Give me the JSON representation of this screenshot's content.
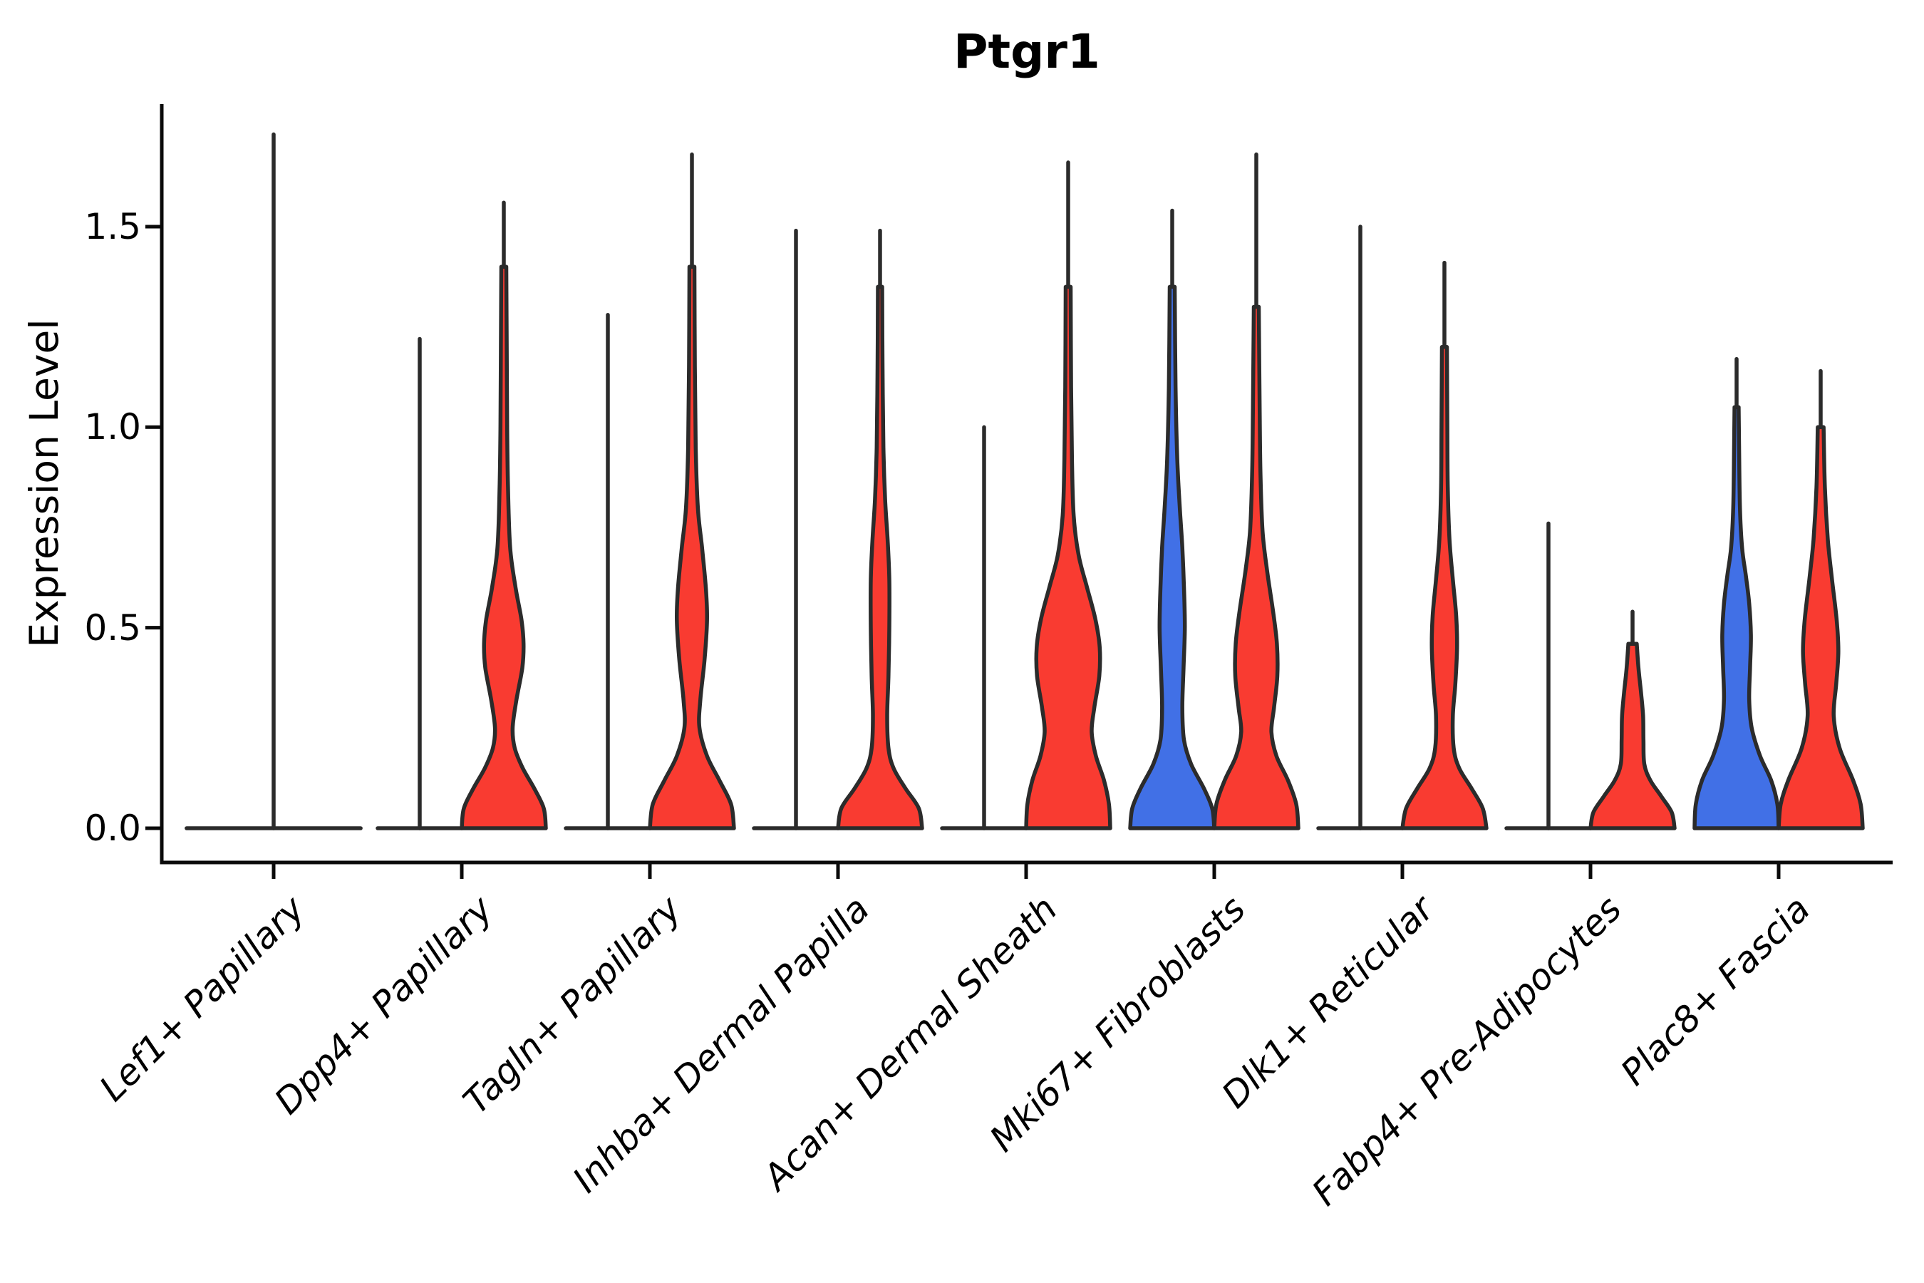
{
  "title": "Ptgr1",
  "y_axis_label": "Expression Level",
  "colors": {
    "red": "#F93B31",
    "blue": "#4170E6",
    "edge": "#2B2B2B",
    "axis": "#0a0a0a",
    "text": "#000000"
  },
  "chart_data": {
    "type": "violin",
    "title": "Ptgr1",
    "xlabel": "",
    "ylabel": "Expression Level",
    "ylim": [
      -0.085,
      1.81
    ],
    "yticks": [
      "0.0",
      "0.5",
      "1.0",
      "1.5"
    ],
    "ytick_values": [
      0.0,
      0.5,
      1.0,
      1.5
    ],
    "grid": false,
    "legend": "none",
    "categories": [
      "Lef1+ Papillary",
      "Dpp4+ Papillary",
      "Tagln+ Papillary",
      "Inhba+ Dermal Papilla",
      "Acan+ Dermal Sheath",
      "Mki67+ Fibroblasts",
      "Dlk1+ Reticular",
      "Fabp4+ Pre-Adipocytes",
      "Plac8+ Fascia"
    ],
    "note": "Split violins per category: left/right. color 'none' = distribution collapsed at 0 (flat line) with a thin whisker spike to spike_max. profile = [expression, half-width fraction of 1.0 unit] pairs.",
    "groups": [
      {
        "label": "Lef1+ Papillary",
        "violins": [
          {
            "pos": "center",
            "color": "none",
            "flat_halfwidth": 2.07,
            "spike_max": 1.73,
            "profile": null
          }
        ]
      },
      {
        "label": "Dpp4+ Papillary",
        "violins": [
          {
            "pos": "left",
            "color": "none",
            "flat_halfwidth": 1.0,
            "spike_max": 1.22,
            "profile": null
          },
          {
            "pos": "right",
            "color": "red",
            "spike_max": 1.56,
            "profile": [
              [
                0,
                1.0
              ],
              [
                0.05,
                0.95
              ],
              [
                0.1,
                0.72
              ],
              [
                0.15,
                0.45
              ],
              [
                0.2,
                0.26
              ],
              [
                0.25,
                0.21
              ],
              [
                0.32,
                0.3
              ],
              [
                0.4,
                0.44
              ],
              [
                0.46,
                0.47
              ],
              [
                0.52,
                0.42
              ],
              [
                0.6,
                0.28
              ],
              [
                0.7,
                0.15
              ],
              [
                0.85,
                0.1
              ],
              [
                1.0,
                0.08
              ],
              [
                1.2,
                0.07
              ],
              [
                1.4,
                0.06
              ]
            ]
          }
        ]
      },
      {
        "label": "Tagln+ Papillary",
        "violins": [
          {
            "pos": "left",
            "color": "none",
            "flat_halfwidth": 1.0,
            "spike_max": 1.28,
            "profile": null
          },
          {
            "pos": "right",
            "color": "red",
            "spike_max": 1.68,
            "profile": [
              [
                0,
                1.0
              ],
              [
                0.06,
                0.93
              ],
              [
                0.12,
                0.65
              ],
              [
                0.18,
                0.36
              ],
              [
                0.25,
                0.18
              ],
              [
                0.32,
                0.2
              ],
              [
                0.42,
                0.3
              ],
              [
                0.52,
                0.36
              ],
              [
                0.6,
                0.33
              ],
              [
                0.7,
                0.24
              ],
              [
                0.8,
                0.14
              ],
              [
                0.95,
                0.09
              ],
              [
                1.15,
                0.07
              ],
              [
                1.4,
                0.06
              ]
            ]
          }
        ]
      },
      {
        "label": "Inhba+ Dermal Papilla",
        "violins": [
          {
            "pos": "left",
            "color": "none",
            "flat_halfwidth": 1.0,
            "spike_max": 1.49,
            "profile": null
          },
          {
            "pos": "right",
            "color": "red",
            "spike_max": 1.49,
            "profile": [
              [
                0,
                1.0
              ],
              [
                0.05,
                0.92
              ],
              [
                0.1,
                0.6
              ],
              [
                0.15,
                0.32
              ],
              [
                0.2,
                0.2
              ],
              [
                0.28,
                0.17
              ],
              [
                0.38,
                0.2
              ],
              [
                0.5,
                0.22
              ],
              [
                0.62,
                0.22
              ],
              [
                0.72,
                0.18
              ],
              [
                0.82,
                0.12
              ],
              [
                0.95,
                0.08
              ],
              [
                1.15,
                0.06
              ],
              [
                1.35,
                0.05
              ]
            ]
          }
        ]
      },
      {
        "label": "Acan+ Dermal Sheath",
        "violins": [
          {
            "pos": "left",
            "color": "none",
            "flat_halfwidth": 1.0,
            "spike_max": 1.0,
            "profile": null
          },
          {
            "pos": "right",
            "color": "red",
            "spike_max": 1.66,
            "profile": [
              [
                0,
                1.0
              ],
              [
                0.06,
                0.97
              ],
              [
                0.12,
                0.85
              ],
              [
                0.18,
                0.66
              ],
              [
                0.24,
                0.56
              ],
              [
                0.3,
                0.62
              ],
              [
                0.38,
                0.74
              ],
              [
                0.45,
                0.75
              ],
              [
                0.52,
                0.65
              ],
              [
                0.6,
                0.45
              ],
              [
                0.68,
                0.25
              ],
              [
                0.78,
                0.13
              ],
              [
                0.92,
                0.09
              ],
              [
                1.1,
                0.07
              ],
              [
                1.35,
                0.06
              ]
            ]
          }
        ]
      },
      {
        "label": "Mki67+ Fibroblasts",
        "violins": [
          {
            "pos": "left",
            "color": "blue",
            "spike_max": 1.54,
            "profile": [
              [
                0,
                1.0
              ],
              [
                0.05,
                0.95
              ],
              [
                0.1,
                0.75
              ],
              [
                0.16,
                0.45
              ],
              [
                0.22,
                0.28
              ],
              [
                0.3,
                0.24
              ],
              [
                0.4,
                0.27
              ],
              [
                0.5,
                0.3
              ],
              [
                0.6,
                0.28
              ],
              [
                0.7,
                0.24
              ],
              [
                0.8,
                0.18
              ],
              [
                0.92,
                0.12
              ],
              [
                1.1,
                0.08
              ],
              [
                1.35,
                0.06
              ]
            ]
          },
          {
            "pos": "right",
            "color": "red",
            "spike_max": 1.68,
            "profile": [
              [
                0,
                1.0
              ],
              [
                0.06,
                0.95
              ],
              [
                0.12,
                0.75
              ],
              [
                0.18,
                0.48
              ],
              [
                0.24,
                0.36
              ],
              [
                0.3,
                0.42
              ],
              [
                0.38,
                0.5
              ],
              [
                0.46,
                0.49
              ],
              [
                0.54,
                0.4
              ],
              [
                0.64,
                0.26
              ],
              [
                0.74,
                0.15
              ],
              [
                0.88,
                0.1
              ],
              [
                1.05,
                0.08
              ],
              [
                1.3,
                0.06
              ]
            ]
          }
        ]
      },
      {
        "label": "Dlk1+ Reticular",
        "violins": [
          {
            "pos": "left",
            "color": "none",
            "flat_halfwidth": 1.0,
            "spike_max": 1.5,
            "profile": null
          },
          {
            "pos": "right",
            "color": "red",
            "spike_max": 1.41,
            "profile": [
              [
                0,
                1.0
              ],
              [
                0.05,
                0.91
              ],
              [
                0.1,
                0.64
              ],
              [
                0.15,
                0.35
              ],
              [
                0.2,
                0.22
              ],
              [
                0.28,
                0.2
              ],
              [
                0.36,
                0.26
              ],
              [
                0.45,
                0.3
              ],
              [
                0.53,
                0.28
              ],
              [
                0.62,
                0.2
              ],
              [
                0.72,
                0.12
              ],
              [
                0.85,
                0.08
              ],
              [
                1.0,
                0.07
              ],
              [
                1.2,
                0.06
              ]
            ]
          }
        ]
      },
      {
        "label": "Fabp4+ Pre-Adipocytes",
        "violins": [
          {
            "pos": "left",
            "color": "none",
            "flat_halfwidth": 1.0,
            "spike_max": 0.76,
            "profile": null
          },
          {
            "pos": "right",
            "color": "red",
            "spike_max": 0.54,
            "profile": [
              [
                0,
                1.0
              ],
              [
                0.04,
                0.93
              ],
              [
                0.08,
                0.68
              ],
              [
                0.12,
                0.42
              ],
              [
                0.16,
                0.28
              ],
              [
                0.22,
                0.26
              ],
              [
                0.28,
                0.25
              ],
              [
                0.34,
                0.2
              ],
              [
                0.4,
                0.14
              ],
              [
                0.46,
                0.1
              ]
            ]
          }
        ]
      },
      {
        "label": "Plac8+ Fascia",
        "violins": [
          {
            "pos": "left",
            "color": "blue",
            "spike_max": 1.17,
            "profile": [
              [
                0,
                1.0
              ],
              [
                0.06,
                0.97
              ],
              [
                0.12,
                0.82
              ],
              [
                0.18,
                0.56
              ],
              [
                0.25,
                0.36
              ],
              [
                0.32,
                0.3
              ],
              [
                0.4,
                0.32
              ],
              [
                0.48,
                0.34
              ],
              [
                0.56,
                0.3
              ],
              [
                0.63,
                0.22
              ],
              [
                0.7,
                0.13
              ],
              [
                0.8,
                0.08
              ],
              [
                0.95,
                0.06
              ],
              [
                1.05,
                0.05
              ]
            ]
          },
          {
            "pos": "right",
            "color": "red",
            "spike_max": 1.14,
            "profile": [
              [
                0,
                1.0
              ],
              [
                0.06,
                0.95
              ],
              [
                0.12,
                0.77
              ],
              [
                0.2,
                0.45
              ],
              [
                0.28,
                0.31
              ],
              [
                0.36,
                0.37
              ],
              [
                0.44,
                0.42
              ],
              [
                0.52,
                0.38
              ],
              [
                0.62,
                0.27
              ],
              [
                0.72,
                0.17
              ],
              [
                0.85,
                0.1
              ],
              [
                1.0,
                0.07
              ]
            ]
          }
        ]
      }
    ]
  }
}
